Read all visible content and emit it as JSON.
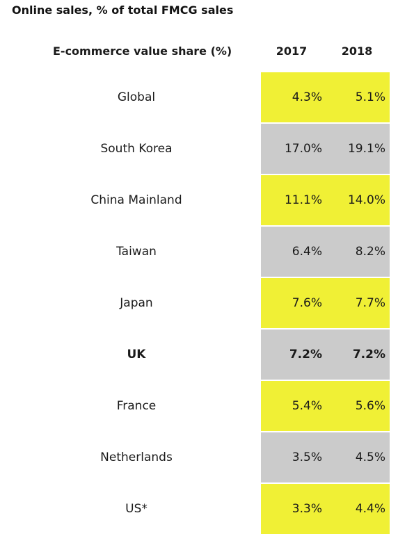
{
  "chart_data": {
    "type": "table",
    "title": "Online sales, % of total FMCG sales",
    "header": {
      "label": "E-commerce value share (%)",
      "years": [
        "2017",
        "2018"
      ]
    },
    "rows": [
      {
        "label": "Global",
        "v2017": "4.3%",
        "v2018": "5.1%",
        "shade": "yellow",
        "bold": false
      },
      {
        "label": "South Korea",
        "v2017": "17.0%",
        "v2018": "19.1%",
        "shade": "grey",
        "bold": false
      },
      {
        "label": "China Mainland",
        "v2017": "11.1%",
        "v2018": "14.0%",
        "shade": "yellow",
        "bold": false
      },
      {
        "label": "Taiwan",
        "v2017": "6.4%",
        "v2018": "8.2%",
        "shade": "grey",
        "bold": false
      },
      {
        "label": "Japan",
        "v2017": "7.6%",
        "v2018": "7.7%",
        "shade": "yellow",
        "bold": false
      },
      {
        "label": "UK",
        "v2017": "7.2%",
        "v2018": "7.2%",
        "shade": "grey",
        "bold": true
      },
      {
        "label": "France",
        "v2017": "5.4%",
        "v2018": "5.6%",
        "shade": "yellow",
        "bold": false
      },
      {
        "label": "Netherlands",
        "v2017": "3.5%",
        "v2018": "4.5%",
        "shade": "grey",
        "bold": false
      },
      {
        "label": "US*",
        "v2017": "3.3%",
        "v2018": "4.4%",
        "shade": "yellow",
        "bold": false
      }
    ],
    "colors": {
      "yellow": "#f0f035",
      "grey": "#cbcbcb"
    }
  }
}
